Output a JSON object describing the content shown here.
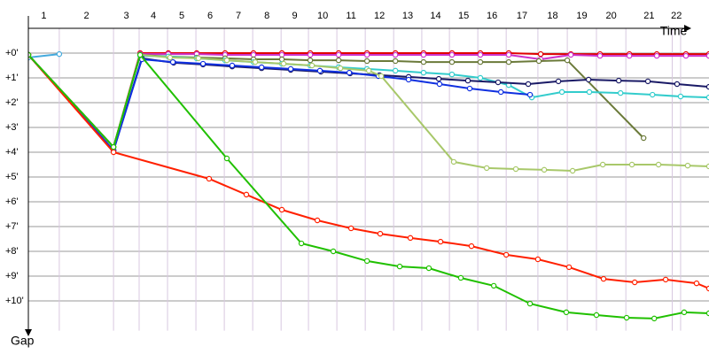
{
  "chart_data": {
    "type": "line",
    "x_label": "Time",
    "y_label": "Gap",
    "xlim": [
      0,
      26.85
    ],
    "ylim": [
      -1,
      11.2
    ],
    "xticks": [
      {
        "value": 1.22,
        "label": "1"
      },
      {
        "value": 3.36,
        "label": "2"
      },
      {
        "value": 4.37,
        "label": "3"
      },
      {
        "value": 5.49,
        "label": "4"
      },
      {
        "value": 6.61,
        "label": "5"
      },
      {
        "value": 7.73,
        "label": "6"
      },
      {
        "value": 8.85,
        "label": "7"
      },
      {
        "value": 9.97,
        "label": "8"
      },
      {
        "value": 11.05,
        "label": "9"
      },
      {
        "value": 12.17,
        "label": "10"
      },
      {
        "value": 13.29,
        "label": "11"
      },
      {
        "value": 14.41,
        "label": "12"
      },
      {
        "value": 15.52,
        "label": "13"
      },
      {
        "value": 16.61,
        "label": "14"
      },
      {
        "value": 17.73,
        "label": "15"
      },
      {
        "value": 18.85,
        "label": "16"
      },
      {
        "value": 20.1,
        "label": "17"
      },
      {
        "value": 21.26,
        "label": "18"
      },
      {
        "value": 22.41,
        "label": "19"
      },
      {
        "value": 23.57,
        "label": "20"
      },
      {
        "value": 25.4,
        "label": "21"
      },
      {
        "value": 25.73,
        "label": "22"
      }
    ],
    "yticks": [
      {
        "value": 0,
        "label": "+0'"
      },
      {
        "value": 1,
        "label": "+1'"
      },
      {
        "value": 2,
        "label": "+2'"
      },
      {
        "value": 3,
        "label": "+3'"
      },
      {
        "value": 4,
        "label": "+4'"
      },
      {
        "value": 5,
        "label": "+5'"
      },
      {
        "value": 6,
        "label": "+6'"
      },
      {
        "value": 7,
        "label": "+7'"
      },
      {
        "value": 8,
        "label": "+8'"
      },
      {
        "value": 9,
        "label": "+9'"
      },
      {
        "value": 10,
        "label": "+10'"
      }
    ],
    "grid": true,
    "series": [
      {
        "color": "#44aadd",
        "x": [
          0,
          1.22
        ],
        "values": [
          0.18,
          0.04
        ]
      },
      {
        "color": "#e00000",
        "x": [
          0,
          3.36,
          4.41,
          5.52,
          6.64,
          7.76,
          8.88,
          10.0,
          11.12,
          12.24,
          13.36,
          14.48,
          15.59,
          16.71,
          17.83,
          18.95,
          20.21,
          21.4,
          22.55,
          23.71,
          24.79,
          25.94,
          26.85
        ],
        "values": [
          0.07,
          3.79,
          0,
          0,
          0,
          0,
          0,
          0,
          0,
          0,
          0,
          0,
          0,
          0,
          0,
          0,
          0.04,
          0.04,
          0.04,
          0.04,
          0.04,
          0.04,
          0.04
        ]
      },
      {
        "color": "#cc33cc",
        "x": [
          0,
          3.36,
          4.41,
          5.52,
          6.64,
          7.76,
          8.88,
          10.0,
          11.12,
          12.24,
          13.36,
          14.48,
          15.59,
          16.71,
          17.83,
          18.95,
          20.21,
          21.4,
          22.55,
          23.71,
          24.79,
          25.94,
          26.85
        ],
        "values": [
          0.07,
          3.79,
          0.04,
          0.04,
          0.04,
          0.07,
          0.07,
          0.07,
          0.07,
          0.07,
          0.07,
          0.07,
          0.07,
          0.07,
          0.07,
          0.07,
          0.25,
          0.07,
          0.11,
          0.11,
          0.11,
          0.11,
          0.11
        ]
      },
      {
        "color": "#6b7a3a",
        "x": [
          0,
          3.36,
          4.41,
          5.52,
          6.64,
          7.76,
          8.88,
          10.0,
          11.12,
          12.24,
          13.36,
          14.48,
          15.59,
          16.71,
          17.83,
          18.95,
          20.14,
          21.26,
          24.27
        ],
        "values": [
          0.07,
          3.79,
          0.07,
          0.14,
          0.18,
          0.21,
          0.25,
          0.25,
          0.29,
          0.29,
          0.32,
          0.32,
          0.36,
          0.36,
          0.36,
          0.36,
          0.32,
          0.29,
          3.43
        ]
      },
      {
        "color": "#33cccc",
        "x": [
          0,
          3.36,
          4.41,
          5.52,
          6.64,
          7.76,
          8.88,
          10.0,
          11.12,
          12.24,
          13.36,
          14.48,
          15.59,
          16.71,
          17.83,
          18.95,
          19.86,
          21.05,
          22.13,
          23.36,
          24.62,
          25.73,
          26.85
        ],
        "values": [
          0.07,
          3.79,
          0.11,
          0.14,
          0.21,
          0.29,
          0.36,
          0.43,
          0.5,
          0.57,
          0.64,
          0.71,
          0.79,
          0.86,
          1.0,
          1.29,
          1.79,
          1.57,
          1.57,
          1.61,
          1.68,
          1.75,
          1.79
        ]
      },
      {
        "color": "#1a1a66",
        "x": [
          0,
          3.36,
          4.48,
          5.73,
          6.89,
          8.04,
          9.2,
          10.35,
          11.54,
          12.69,
          13.85,
          15.0,
          16.19,
          17.34,
          18.53,
          19.72,
          20.91,
          22.1,
          23.29,
          24.44,
          25.59,
          26.85
        ],
        "values": [
          0.07,
          3.93,
          0.21,
          0.39,
          0.46,
          0.54,
          0.61,
          0.68,
          0.75,
          0.82,
          0.89,
          0.96,
          1.04,
          1.11,
          1.18,
          1.25,
          1.14,
          1.07,
          1.11,
          1.14,
          1.25,
          1.36
        ]
      },
      {
        "color": "#1030e0",
        "x": [
          0,
          3.36,
          4.48,
          5.7,
          6.89,
          8.04,
          9.2,
          10.35,
          11.5,
          12.66,
          13.81,
          15.0,
          16.22,
          17.41,
          18.64,
          19.79
        ],
        "values": [
          0.07,
          3.93,
          0.25,
          0.36,
          0.43,
          0.5,
          0.57,
          0.64,
          0.71,
          0.79,
          0.93,
          1.07,
          1.25,
          1.43,
          1.57,
          1.68
        ]
      },
      {
        "color": "#a8c86a",
        "x": [
          0,
          3.36,
          4.41,
          5.59,
          6.71,
          7.83,
          8.95,
          10.07,
          11.19,
          12.31,
          13.43,
          13.92,
          16.78,
          18.08,
          19.23,
          20.35,
          21.47,
          22.66,
          23.81,
          24.86,
          26.01,
          26.85
        ],
        "values": [
          0.07,
          3.79,
          0.07,
          0.18,
          0.21,
          0.29,
          0.36,
          0.43,
          0.5,
          0.61,
          0.71,
          0.93,
          4.39,
          4.64,
          4.68,
          4.71,
          4.75,
          4.5,
          4.5,
          4.5,
          4.54,
          4.57
        ]
      },
      {
        "color": "#ff2000",
        "x": [
          0,
          3.36,
          7.13,
          8.6,
          10.0,
          11.4,
          12.73,
          13.88,
          15.07,
          16.26,
          17.48,
          18.85,
          20.1,
          21.33,
          22.69,
          23.92,
          25.14,
          26.36,
          26.85
        ],
        "values": [
          0.07,
          4.0,
          5.07,
          5.71,
          6.32,
          6.75,
          7.07,
          7.29,
          7.46,
          7.61,
          7.79,
          8.14,
          8.32,
          8.64,
          9.11,
          9.25,
          9.14,
          9.29,
          9.5
        ]
      },
      {
        "color": "#20c000",
        "x": [
          0,
          3.36,
          4.41,
          7.83,
          10.77,
          12.03,
          13.36,
          14.65,
          15.8,
          17.06,
          18.36,
          19.79,
          21.22,
          22.41,
          23.6,
          24.69,
          25.87,
          26.85
        ],
        "values": [
          0.07,
          3.79,
          0.07,
          4.25,
          7.68,
          8.0,
          8.39,
          8.61,
          8.68,
          9.07,
          9.39,
          10.11,
          10.46,
          10.57,
          10.68,
          10.71,
          10.46,
          10.5
        ]
      }
    ]
  }
}
